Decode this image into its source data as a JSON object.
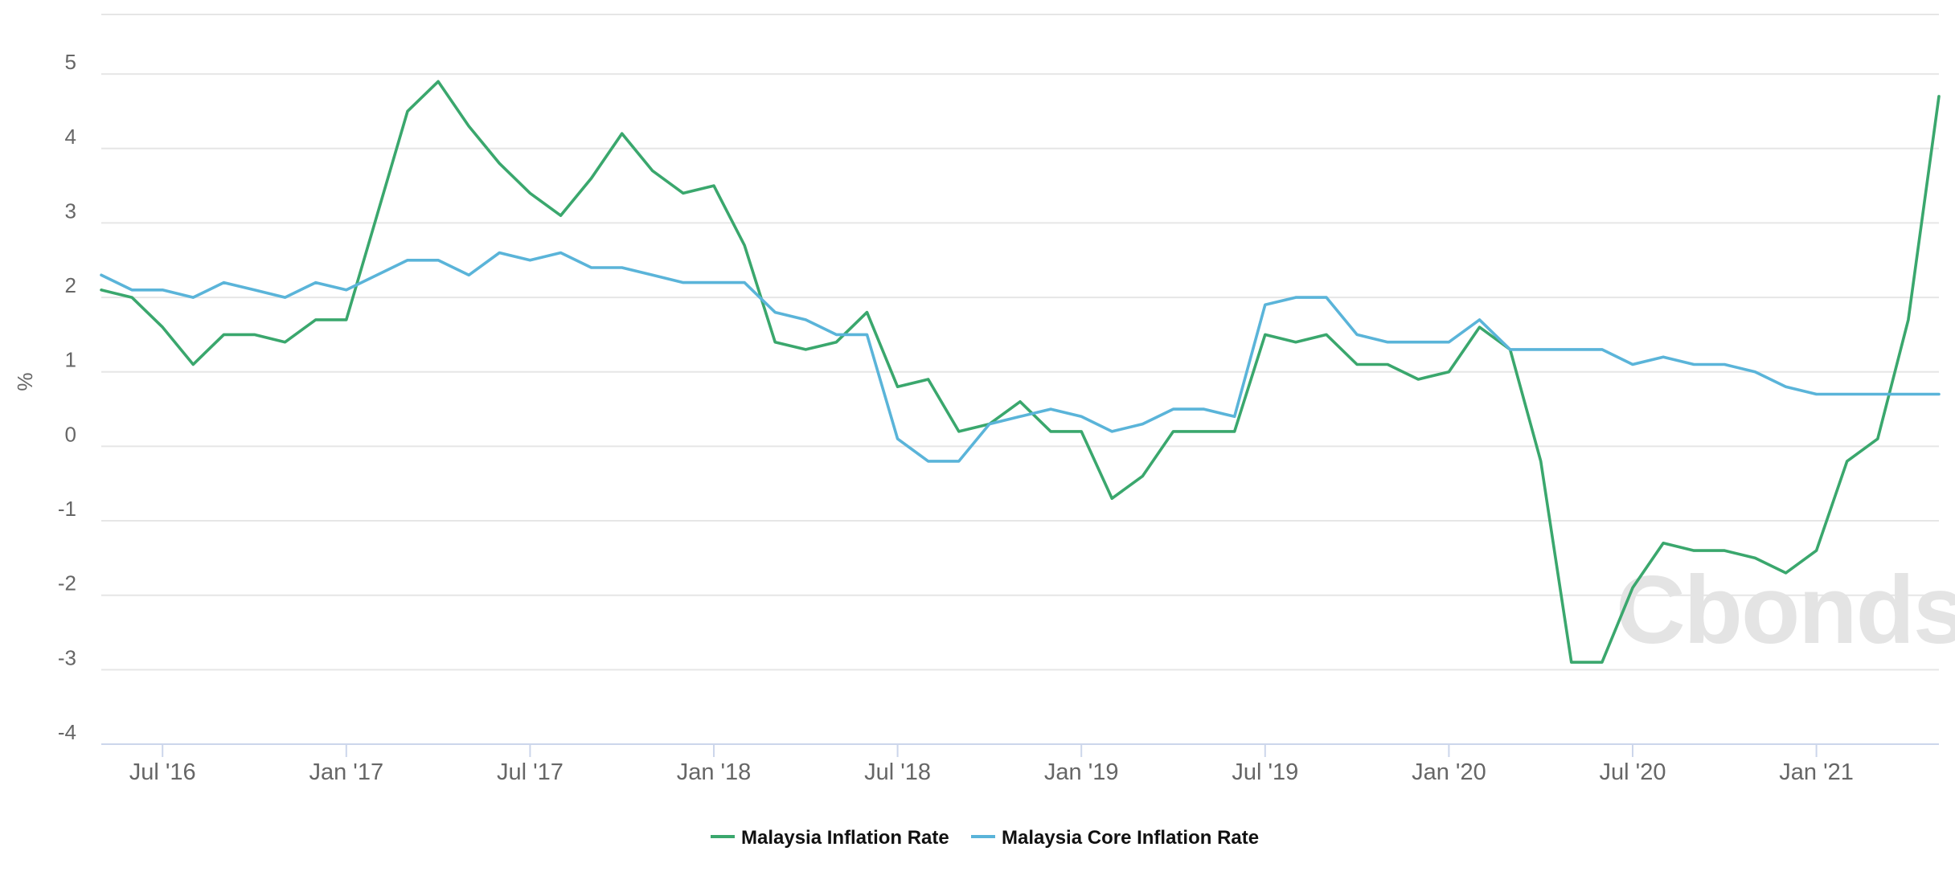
{
  "chart_data": {
    "type": "line",
    "title": "",
    "xlabel": "",
    "ylabel": "%",
    "ylim": [
      -4,
      5.8
    ],
    "yticks": [
      5,
      4,
      3,
      2,
      1,
      0,
      -1,
      -2,
      -3,
      -4
    ],
    "x_tick_labels": [
      "Jul '16",
      "Jan '17",
      "Jul '17",
      "Jan '18",
      "Jul '18",
      "Jan '19",
      "Jul '19",
      "Jan '20",
      "Jul '20",
      "Jan '21"
    ],
    "x_tick_months": [
      "2016-07",
      "2017-01",
      "2017-07",
      "2018-01",
      "2018-07",
      "2019-01",
      "2019-07",
      "2020-01",
      "2020-07",
      "2021-01"
    ],
    "x": [
      "2016-05",
      "2016-06",
      "2016-07",
      "2016-08",
      "2016-09",
      "2016-10",
      "2016-11",
      "2016-12",
      "2017-01",
      "2017-02",
      "2017-03",
      "2017-04",
      "2017-05",
      "2017-06",
      "2017-07",
      "2017-08",
      "2017-09",
      "2017-10",
      "2017-11",
      "2017-12",
      "2018-01",
      "2018-02",
      "2018-03",
      "2018-04",
      "2018-05",
      "2018-06",
      "2018-07",
      "2018-08",
      "2018-09",
      "2018-10",
      "2018-11",
      "2018-12",
      "2019-01",
      "2019-02",
      "2019-03",
      "2019-04",
      "2019-05",
      "2019-06",
      "2019-07",
      "2019-08",
      "2019-09",
      "2019-10",
      "2019-11",
      "2019-12",
      "2020-01",
      "2020-02",
      "2020-03",
      "2020-04",
      "2020-05",
      "2020-06",
      "2020-07",
      "2020-08",
      "2020-09",
      "2020-10",
      "2020-11",
      "2020-12",
      "2021-01",
      "2021-02",
      "2021-03",
      "2021-04",
      "2021-05"
    ],
    "series": [
      {
        "name": "Malaysia Inflation Rate",
        "color": "#3aa76d",
        "values": [
          2.1,
          2.0,
          1.6,
          1.1,
          1.5,
          1.5,
          1.4,
          1.7,
          1.7,
          3.1,
          4.5,
          4.9,
          4.3,
          3.8,
          3.4,
          3.1,
          3.6,
          4.2,
          3.7,
          3.4,
          3.5,
          2.7,
          1.4,
          1.3,
          1.4,
          1.8,
          0.8,
          0.9,
          0.2,
          0.3,
          0.6,
          0.2,
          0.2,
          -0.7,
          -0.4,
          0.2,
          0.2,
          0.2,
          1.5,
          1.4,
          1.5,
          1.1,
          1.1,
          0.9,
          1.0,
          1.6,
          1.3,
          -0.2,
          -2.9,
          -2.9,
          -1.9,
          -1.3,
          -1.4,
          -1.4,
          -1.5,
          -1.7,
          -1.4,
          -0.2,
          0.1,
          1.7,
          4.7
        ]
      },
      {
        "name": "Malaysia Core Inflation Rate",
        "color": "#5ab4d9",
        "values": [
          2.3,
          2.1,
          2.1,
          2.0,
          2.2,
          2.1,
          2.0,
          2.2,
          2.1,
          2.3,
          2.5,
          2.5,
          2.3,
          2.6,
          2.5,
          2.6,
          2.4,
          2.4,
          2.3,
          2.2,
          2.2,
          2.2,
          1.8,
          1.7,
          1.5,
          1.5,
          0.1,
          -0.2,
          -0.2,
          0.3,
          0.4,
          0.5,
          0.4,
          0.2,
          0.3,
          0.5,
          0.5,
          0.4,
          1.9,
          2.0,
          2.0,
          1.5,
          1.4,
          1.4,
          1.4,
          1.7,
          1.3,
          1.3,
          1.3,
          1.3,
          1.1,
          1.2,
          1.1,
          1.1,
          1.0,
          0.8,
          0.7,
          0.7,
          0.7,
          0.7,
          0.7
        ]
      }
    ],
    "grid": true,
    "legend_position": "bottom-center",
    "watermark": "Cbonds"
  }
}
